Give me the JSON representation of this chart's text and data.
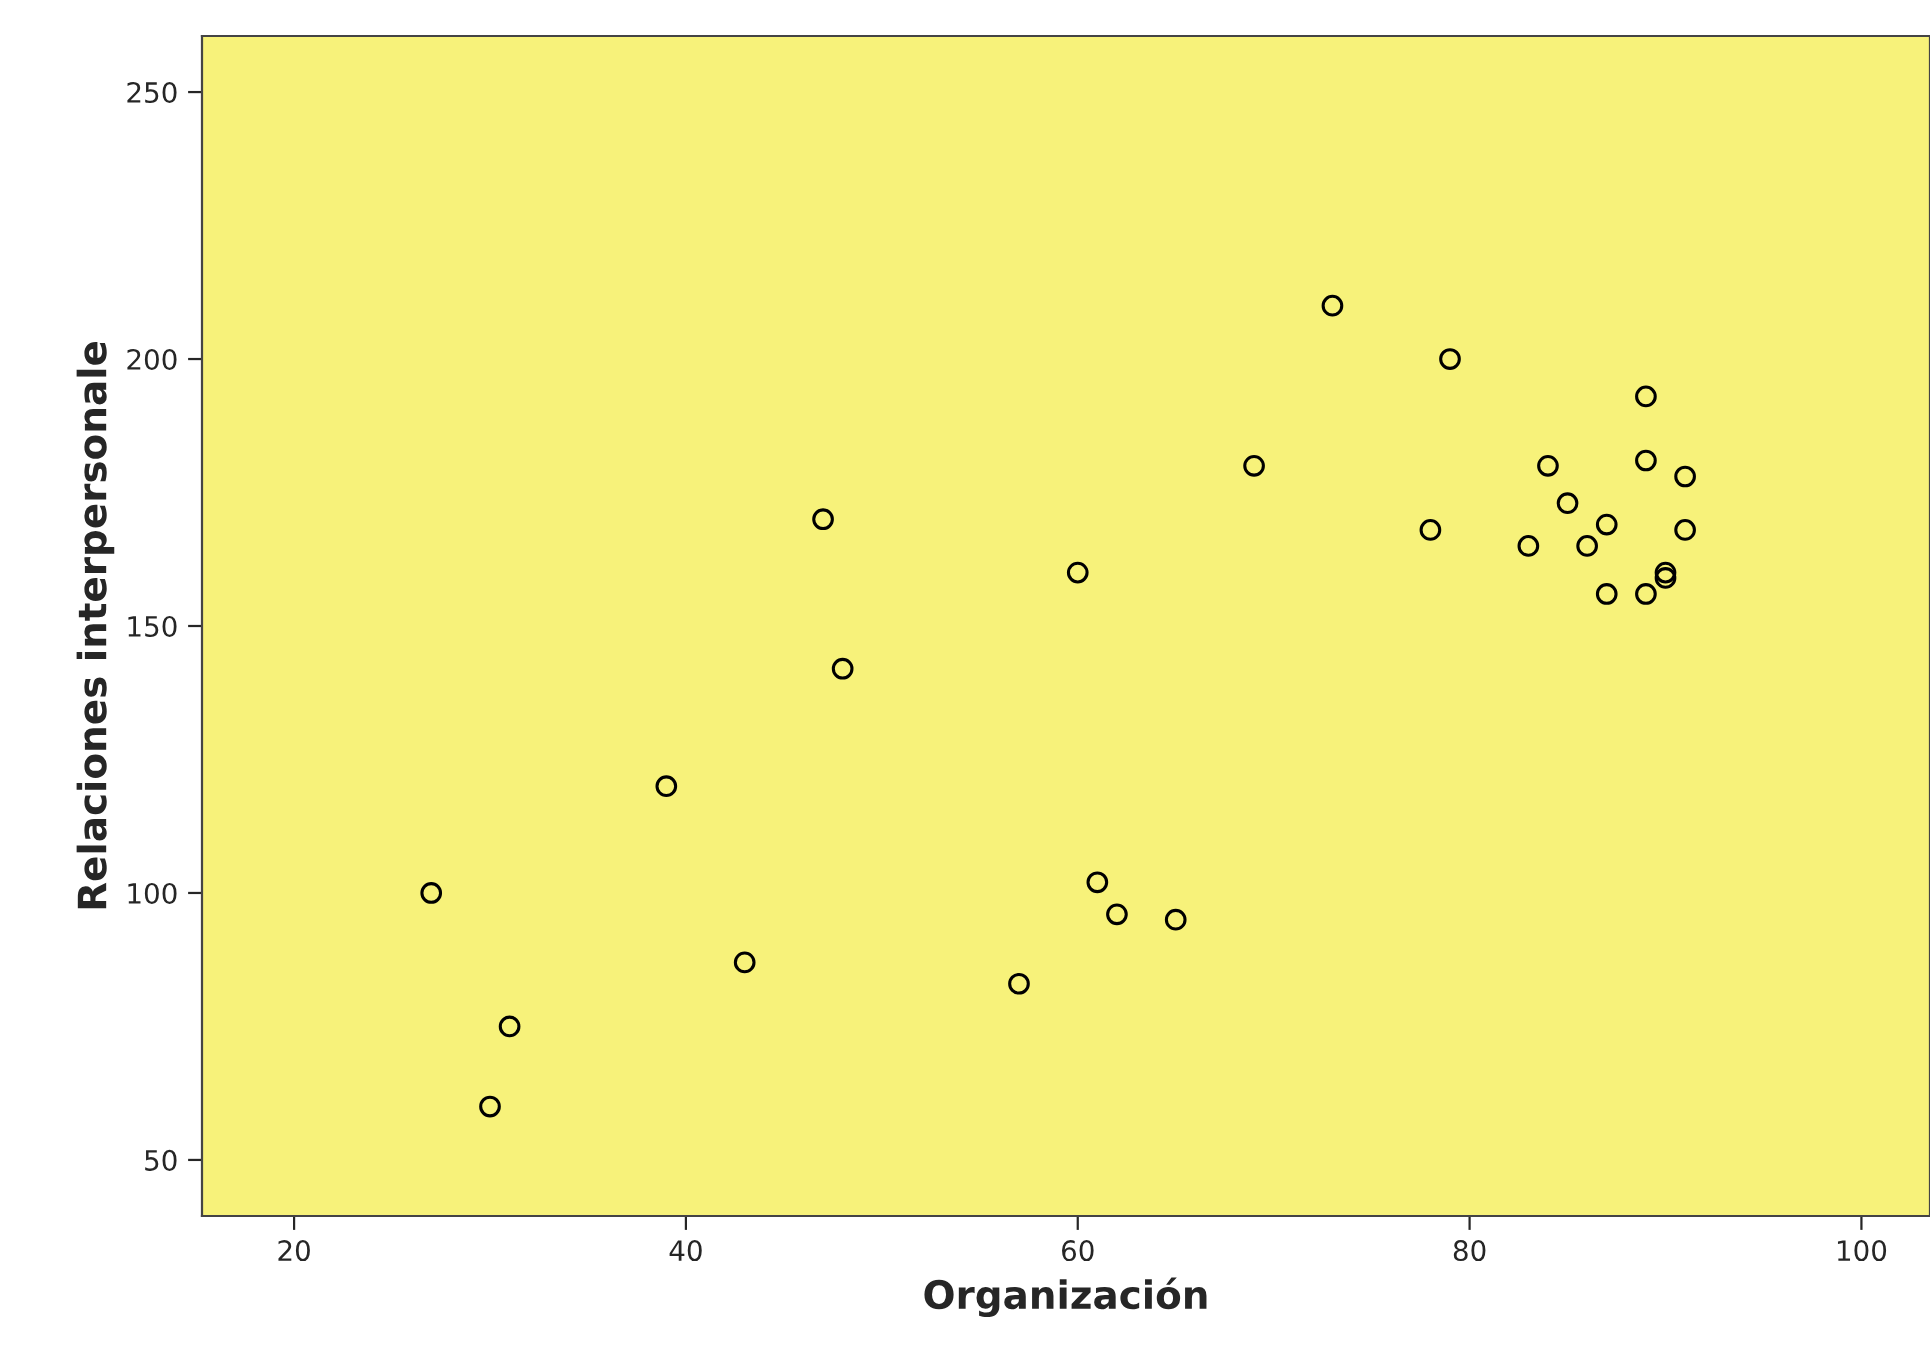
{
  "chart_data": {
    "type": "scatter",
    "xlabel": "Organización",
    "ylabel": "Relaciones interpersonale",
    "x": [
      27,
      30,
      31,
      39,
      43,
      47,
      48,
      57,
      60,
      61,
      62,
      65,
      69,
      73,
      78,
      79,
      83,
      84,
      85,
      86,
      87,
      87,
      89,
      89,
      89,
      90,
      90,
      91,
      91
    ],
    "series": [
      {
        "color": "#000000",
        "values": [
          100,
          60,
          75,
          120,
          87,
          170,
          142,
          83,
          160,
          102,
          96,
          95,
          180,
          210,
          168,
          200,
          165,
          180,
          173,
          165,
          169,
          156,
          193,
          181,
          156,
          160,
          159,
          178,
          168
        ]
      }
    ],
    "xlim": [
      15.3,
      103.5
    ],
    "ylim": [
      39.5,
      260.5
    ],
    "xticks": [
      20,
      40,
      60,
      80,
      100
    ],
    "yticks": [
      50,
      100,
      150,
      200,
      250
    ],
    "marker": "circle",
    "grid": false,
    "legend": false
  }
}
